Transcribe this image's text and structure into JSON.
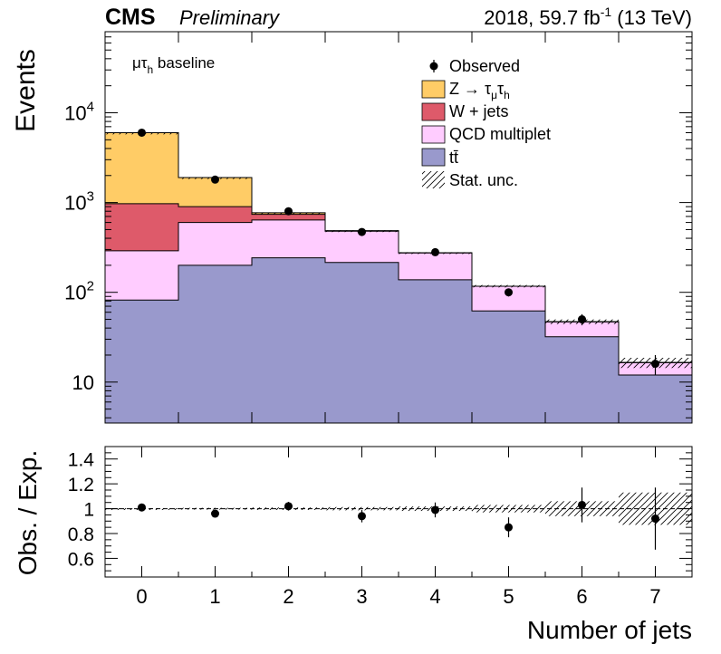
{
  "header": {
    "experiment": "CMS",
    "status": "Preliminary",
    "lumi_prefix": "2018, 59.7 fb",
    "lumi_exp": "-1",
    "lumi_suffix": " (13 TeV)"
  },
  "chart_data": [
    {
      "type": "bar",
      "stacked": true,
      "title": "",
      "annotation": {
        "base": "μτ",
        "sub": "h",
        "rest": " baseline"
      },
      "categories": [
        "0",
        "1",
        "2",
        "3",
        "4",
        "5",
        "6",
        "7"
      ],
      "ylabel": "Events",
      "yscale": "log",
      "ylim": [
        3.5,
        80000
      ],
      "yticks": [
        {
          "v": 10,
          "b": "10",
          "e": ""
        },
        {
          "v": 100,
          "b": "10",
          "e": "2"
        },
        {
          "v": 1000,
          "b": "10",
          "e": "3"
        },
        {
          "v": 10000,
          "b": "10",
          "e": "4"
        }
      ],
      "legend_position": "top-right",
      "series": [
        {
          "key": "tt",
          "legend": "tt̄",
          "color": "#9999cc",
          "values": [
            82,
            200,
            242,
            215,
            138,
            62,
            32,
            12
          ]
        },
        {
          "key": "qcd",
          "legend": "QCD multiplet",
          "color": "#ffccff",
          "values": [
            208,
            400,
            398,
            265,
            137,
            55,
            15,
            4.5
          ]
        },
        {
          "key": "wjets",
          "legend": "W + jets",
          "color": "#de5a6a",
          "values": [
            680,
            300,
            100,
            5,
            0,
            0,
            0,
            0
          ]
        },
        {
          "key": "ztt",
          "legend": "Z → τμτh",
          "color": "#ffcc66",
          "values": [
            5030,
            1000,
            30,
            0,
            0,
            0,
            0,
            0
          ]
        }
      ],
      "stat_unc_rel": [
        0.004,
        0.007,
        0.01,
        0.013,
        0.018,
        0.03,
        0.06,
        0.13
      ],
      "observed": {
        "legend": "Observed",
        "values": [
          6000,
          1800,
          800,
          470,
          280,
          100,
          50,
          16
        ]
      },
      "stat_unc_legend": "Stat. unc."
    },
    {
      "type": "scatter",
      "xlabel": "Number of jets",
      "ylabel": "Obs. / Exp.",
      "ylim": [
        0.45,
        1.5
      ],
      "yticks": [
        "0.6",
        "0.8",
        "1",
        "1.2",
        "1.4"
      ],
      "x": [
        "0",
        "1",
        "2",
        "3",
        "4",
        "5",
        "6",
        "7"
      ],
      "values": [
        1.01,
        0.96,
        1.02,
        0.94,
        0.99,
        0.85,
        1.03,
        0.92
      ],
      "errors": [
        0.015,
        0.025,
        0.035,
        0.05,
        0.06,
        0.08,
        0.14,
        0.25
      ]
    }
  ]
}
